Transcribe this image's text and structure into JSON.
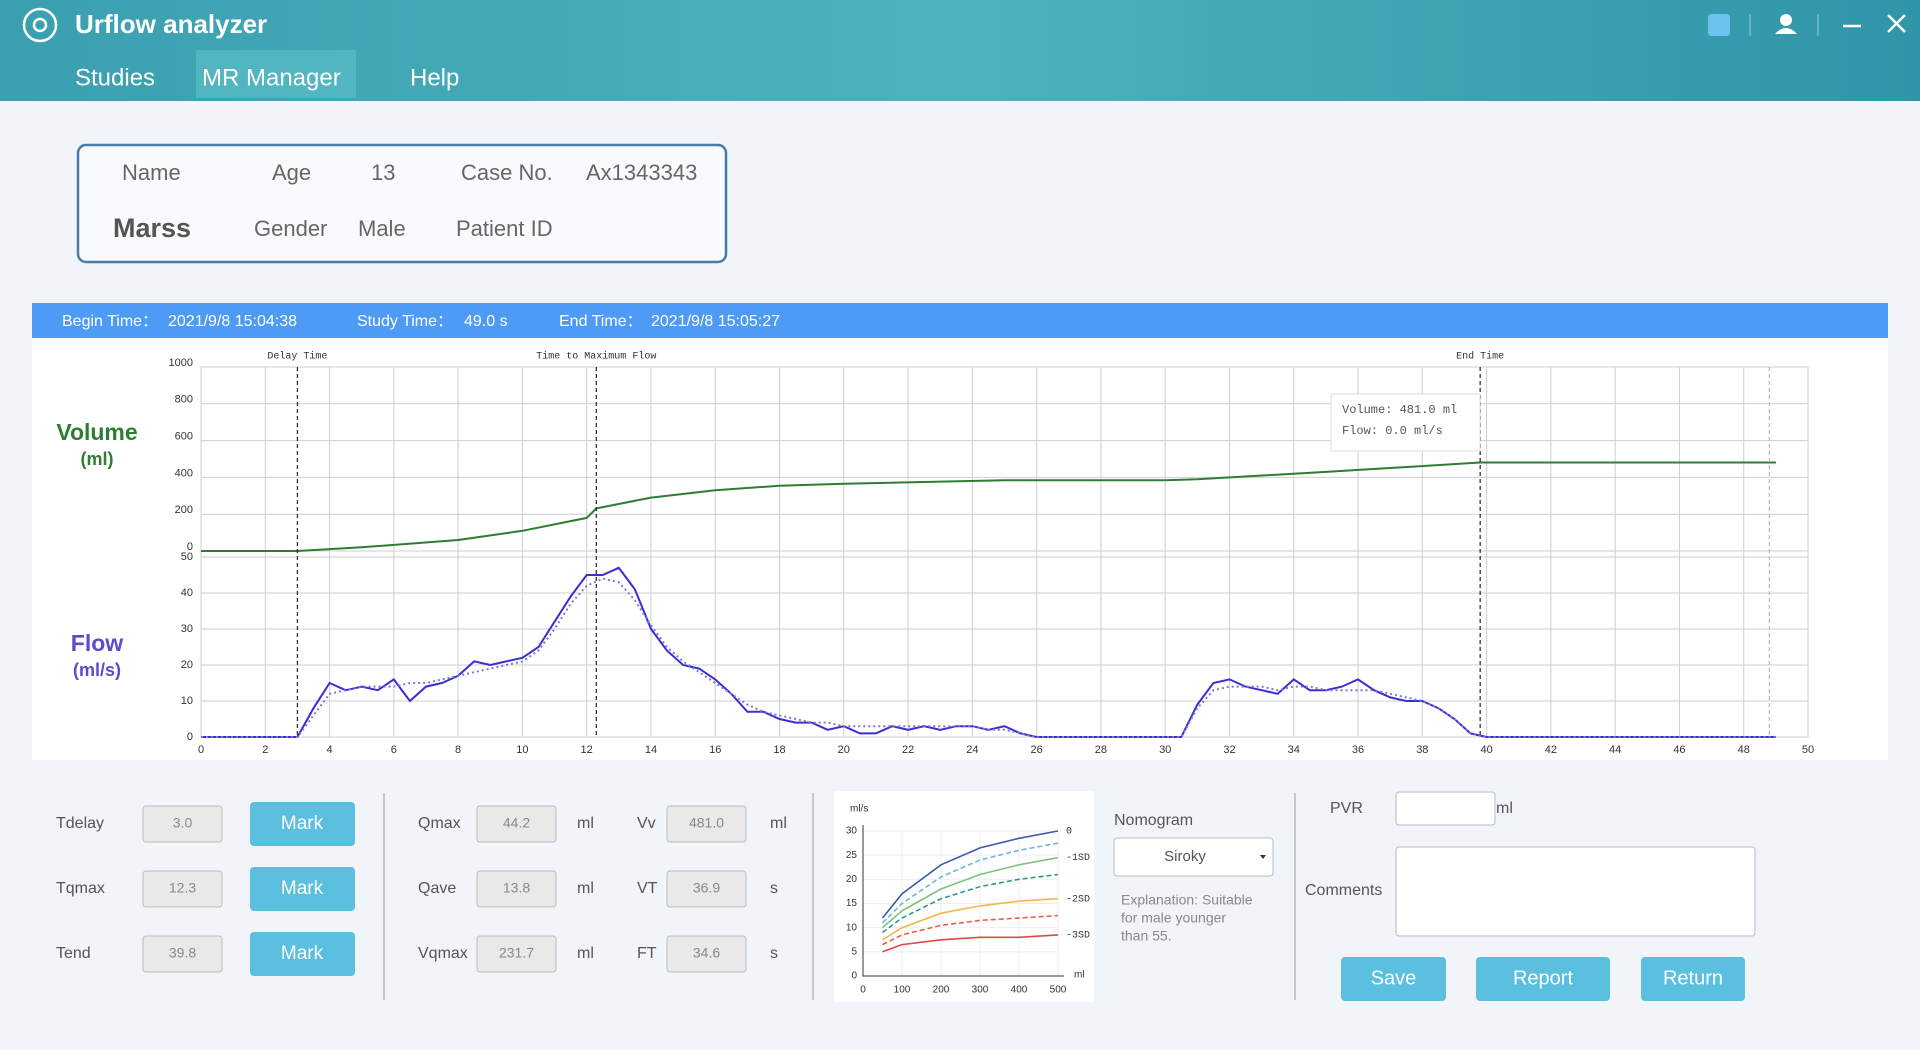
{
  "header": {
    "title": "Urflow analyzer",
    "menu": [
      "Studies",
      "MR Manager",
      "Help"
    ]
  },
  "patient": {
    "name_label": "Name",
    "name": "Marss",
    "age_label": "Age",
    "age": "13",
    "gender_label": "Gender",
    "gender": "Male",
    "case_label": "Case No.",
    "case_no": "Ax1343343",
    "patient_id_label": "Patient ID"
  },
  "study": {
    "begin_label": "Begin Time：",
    "begin": "2021/9/8 15:04:38",
    "study_label": "Study Time：",
    "study": "49.0 s",
    "end_label": "End Time：",
    "end": "2021/9/8 15:05:27"
  },
  "tooltip": [
    "Volume: 481.0 ml",
    "Flow: 0.0 ml/s"
  ],
  "chart_data": [
    {
      "type": "line",
      "y_label": "Volume",
      "y_unit": "(ml)",
      "xlim": [
        0,
        50
      ],
      "ylim": [
        0,
        1000
      ],
      "yticks": [
        0,
        200,
        400,
        600,
        800,
        1000
      ],
      "x": [
        0,
        3,
        5,
        8,
        10,
        12,
        12.3,
        14,
        16,
        18,
        20,
        25,
        30,
        31,
        35,
        39.8,
        49
      ],
      "series": [
        {
          "color": "#2e7d32",
          "values": [
            0,
            0,
            20,
            60,
            110,
            180,
            231.7,
            290,
            330,
            355,
            365,
            385,
            385,
            390,
            430,
            481,
            481
          ]
        }
      ]
    },
    {
      "type": "line",
      "y_label": "Flow",
      "y_unit": "(ml/s)",
      "xlim": [
        0,
        50
      ],
      "xticks": [
        0,
        2,
        4,
        6,
        8,
        10,
        12,
        14,
        16,
        18,
        20,
        22,
        24,
        26,
        28,
        30,
        32,
        34,
        36,
        38,
        40,
        42,
        44,
        46,
        48,
        50
      ],
      "ylim": [
        0,
        50
      ],
      "yticks": [
        0,
        10,
        20,
        30,
        40,
        50
      ],
      "grid": true,
      "markers": [
        {
          "label": "Delay Time",
          "x": 3.0,
          "color": "#333333"
        },
        {
          "label": "Time to Maximum Flow",
          "x": 12.3,
          "color": "#333333"
        },
        {
          "label": "End Time",
          "x": 39.8,
          "color": "#333333"
        },
        {
          "x": 48.8,
          "color": "#bbbbbb"
        }
      ],
      "x": [
        0,
        0.5,
        1,
        1.5,
        2,
        2.5,
        3,
        3.5,
        4,
        4.5,
        5,
        5.5,
        6,
        6.5,
        7,
        7.5,
        8,
        8.5,
        9,
        9.5,
        10,
        10.5,
        11,
        11.5,
        12,
        12.5,
        13,
        13.5,
        14,
        14.5,
        15,
        15.5,
        16,
        16.5,
        17,
        17.5,
        18,
        18.5,
        19,
        19.5,
        20,
        20.5,
        21,
        21.5,
        22,
        22.5,
        23,
        23.5,
        24,
        24.5,
        25,
        25.5,
        26,
        26.5,
        27,
        27.5,
        28,
        28.5,
        29,
        29.5,
        30,
        30.5,
        31,
        31.5,
        32,
        32.5,
        33,
        33.5,
        34,
        34.5,
        35,
        35.5,
        36,
        36.5,
        37,
        37.5,
        38,
        38.5,
        39,
        39.5,
        40,
        40.5,
        41,
        41.5,
        42,
        42.5,
        43,
        43.5,
        44,
        44.5,
        45,
        45.5,
        46,
        46.5,
        47,
        47.5,
        48,
        48.5,
        49
      ],
      "series": [
        {
          "color": "#3a2fd0",
          "values": [
            0,
            0,
            0,
            0,
            0,
            0,
            0,
            8,
            15,
            13,
            14,
            13,
            16,
            10,
            14,
            15,
            17,
            21,
            20,
            21,
            22,
            25,
            32,
            39,
            45,
            45,
            47,
            41,
            30,
            24,
            20,
            19,
            16,
            12,
            7,
            7,
            5,
            4,
            4,
            2,
            3,
            1,
            1,
            3,
            2,
            3,
            2,
            3,
            3,
            2,
            3,
            1,
            0,
            0,
            0,
            0,
            0,
            0,
            0,
            0,
            0,
            0,
            9,
            15,
            16,
            14,
            13,
            12,
            16,
            13,
            13,
            14,
            16,
            13,
            11,
            10,
            10,
            8,
            5,
            1,
            0,
            0,
            0,
            0,
            0,
            0,
            0,
            0,
            0,
            0,
            0,
            0,
            0,
            0,
            0,
            0,
            0,
            0,
            0
          ]
        },
        {
          "color": "#7b78d8",
          "dash": true,
          "values": [
            0,
            0,
            0,
            0,
            0,
            0,
            0,
            6,
            12,
            13,
            14,
            14,
            14,
            15,
            15,
            16,
            17,
            18,
            19,
            20,
            21,
            24,
            30,
            37,
            42,
            44,
            43,
            38,
            31,
            25,
            21,
            18,
            15,
            12,
            9,
            7,
            6,
            5,
            4,
            4,
            3,
            3,
            3,
            3,
            3,
            3,
            3,
            3,
            3,
            2,
            2,
            1,
            0,
            0,
            0,
            0,
            0,
            0,
            0,
            0,
            0,
            0,
            8,
            13,
            14,
            14,
            14,
            13,
            14,
            14,
            13,
            13,
            13,
            13,
            12,
            11,
            10,
            8,
            5,
            1,
            0,
            0,
            0,
            0,
            0,
            0,
            0,
            0,
            0,
            0,
            0,
            0,
            0,
            0,
            0,
            0,
            0,
            0,
            0
          ]
        }
      ]
    },
    {
      "type": "line",
      "x_label": "ml",
      "y_label": "ml/s",
      "xlim": [
        0,
        500
      ],
      "xticks": [
        0,
        100,
        200,
        300,
        400,
        500
      ],
      "ylim": [
        0,
        30
      ],
      "yticks": [
        0,
        5,
        10,
        15,
        20,
        25,
        30
      ],
      "grid": true,
      "x": [
        50,
        100,
        200,
        300,
        400,
        500
      ],
      "series": [
        {
          "name": "0",
          "color": "#3c5aa8",
          "values": [
            12,
            17,
            23,
            26.5,
            28.5,
            30
          ]
        },
        {
          "color": "#6ab8d8",
          "dash": true,
          "values": [
            11,
            15,
            20.5,
            24,
            26,
            27.5
          ]
        },
        {
          "name": "-1SD",
          "color": "#7cc47a",
          "values": [
            10,
            13.5,
            18,
            21,
            23,
            24.5
          ]
        },
        {
          "color": "#2a9a8a",
          "dash": true,
          "values": [
            9,
            12,
            16,
            18.5,
            20,
            21
          ]
        },
        {
          "name": "-2SD",
          "color": "#f2b84b",
          "values": [
            7.5,
            10,
            13,
            14.5,
            15.5,
            16
          ]
        },
        {
          "color": "#e8604a",
          "dash": true,
          "values": [
            6.5,
            8.5,
            10.5,
            11.5,
            12,
            12.5
          ]
        },
        {
          "name": "-3SD",
          "color": "#e04848",
          "values": [
            5,
            6.5,
            7.5,
            8,
            8,
            8.5
          ]
        }
      ]
    }
  ],
  "params": {
    "col1": [
      {
        "label": "Tdelay",
        "value": "3.0",
        "button": "Mark"
      },
      {
        "label": "Tqmax",
        "value": "12.3",
        "button": "Mark"
      },
      {
        "label": "Tend",
        "value": "39.8",
        "button": "Mark"
      }
    ],
    "col2": [
      {
        "label": "Qmax",
        "value": "44.2",
        "unit": "ml"
      },
      {
        "label": "Qave",
        "value": "13.8",
        "unit": "ml"
      },
      {
        "label": "Vqmax",
        "value": "231.7",
        "unit": "ml"
      }
    ],
    "col3": [
      {
        "label": "Vv",
        "value": "481.0",
        "unit": "ml"
      },
      {
        "label": "VT",
        "value": "36.9",
        "unit": "s"
      },
      {
        "label": "FT",
        "value": "34.6",
        "unit": "s"
      }
    ]
  },
  "nomogram": {
    "label": "Nomogram",
    "method": "Siroky",
    "explanation": [
      "Explanation: Suitable",
      "for male younger",
      "than 55."
    ]
  },
  "notes": {
    "pvr_label": "PVR",
    "pvr_unit": "ml",
    "comments_label": "Comments",
    "buttons": [
      "Save",
      "Report",
      "Return"
    ]
  }
}
